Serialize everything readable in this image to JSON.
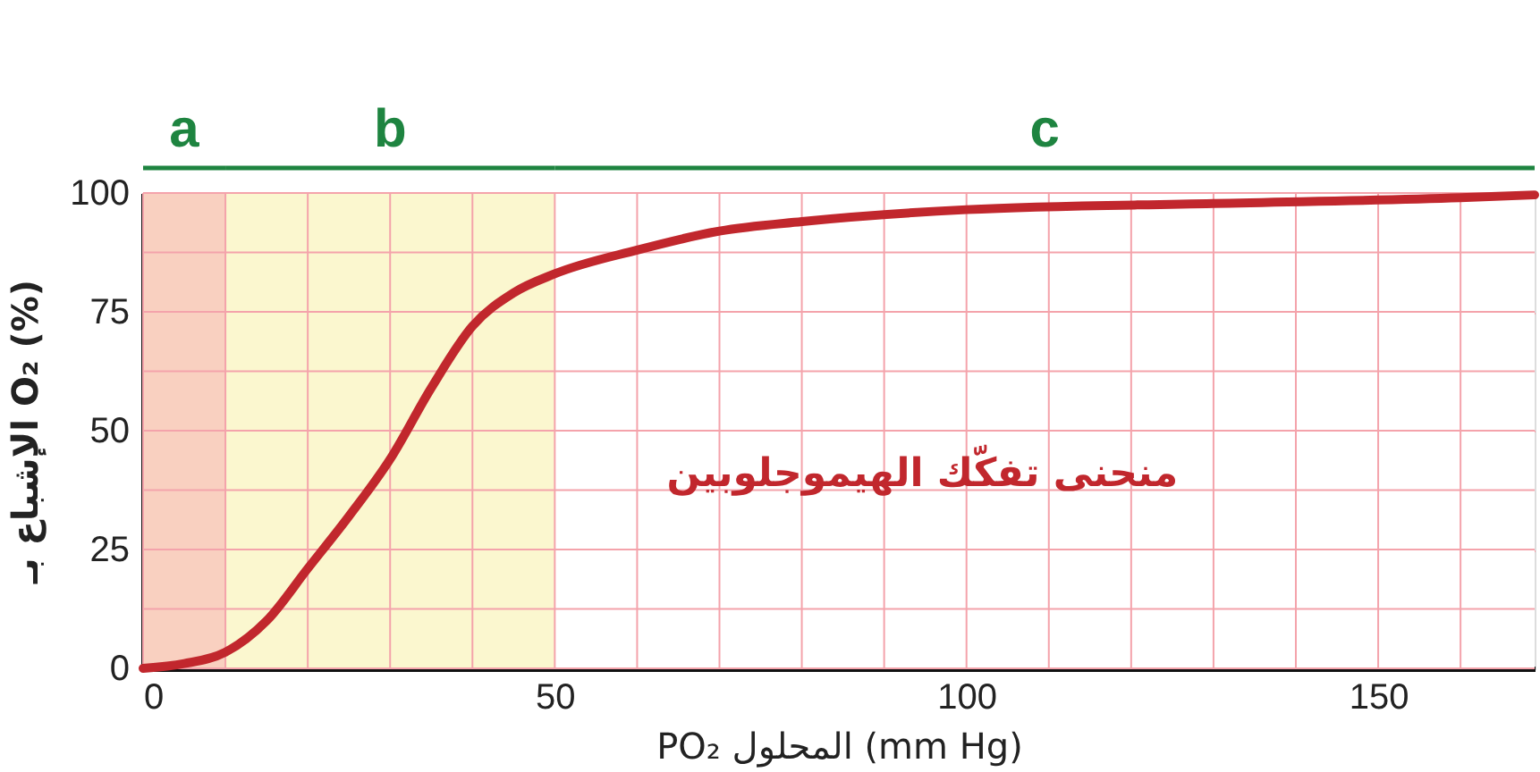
{
  "chart_data": {
    "type": "line",
    "xlabel": "PO₂ المحلول (mm Hg)",
    "ylabel": "الإشباع بـ O₂ (%)",
    "series": [
      {
        "name": "منحنى تفكّك الهيموجلوبين",
        "color": "#c1272d",
        "x": [
          0,
          5,
          10,
          15,
          20,
          25,
          30,
          35,
          40,
          45,
          50,
          60,
          70,
          80,
          100,
          130,
          160,
          169
        ],
        "values": [
          0,
          1,
          3.4,
          10,
          21,
          32,
          44,
          59,
          72,
          79,
          83,
          88,
          92,
          94,
          96.5,
          97.8,
          99,
          99.6
        ]
      }
    ],
    "xlim": [
      0,
      169
    ],
    "xticks": [
      0,
      {
        "value": 10,
        "label": null
      },
      {
        "value": 20,
        "label": null
      },
      {
        "value": 30,
        "label": null
      },
      {
        "value": 40,
        "label": null
      },
      50,
      {
        "value": 60,
        "label": null
      },
      {
        "value": 70,
        "label": null
      },
      {
        "value": 80,
        "label": null
      },
      {
        "value": 90,
        "label": null
      },
      100,
      {
        "value": 110,
        "label": null
      },
      {
        "value": 120,
        "label": null
      },
      {
        "value": 130,
        "label": null
      },
      {
        "value": 140,
        "label": null
      },
      150,
      {
        "value": 160,
        "label": null
      }
    ],
    "ylim": [
      0,
      100
    ],
    "yticks": [
      0,
      {
        "value": 12.5,
        "label": null
      },
      25,
      {
        "value": 37.5,
        "label": null
      },
      50,
      {
        "value": 62.5,
        "label": null
      },
      75,
      {
        "value": 87.5,
        "label": null
      },
      100
    ],
    "bands": [
      {
        "axis": "x",
        "from": 0,
        "to": 10,
        "label": "a",
        "color": "#f9d0c0"
      },
      {
        "axis": "x",
        "from": 10,
        "to": 50,
        "label": "b",
        "color": "#fbf7cf"
      },
      {
        "axis": "x",
        "from": 50,
        "to": 169,
        "label": "c",
        "color": "#ffffff"
      }
    ],
    "grid": true,
    "line_style": "solid",
    "marker": "none"
  }
}
